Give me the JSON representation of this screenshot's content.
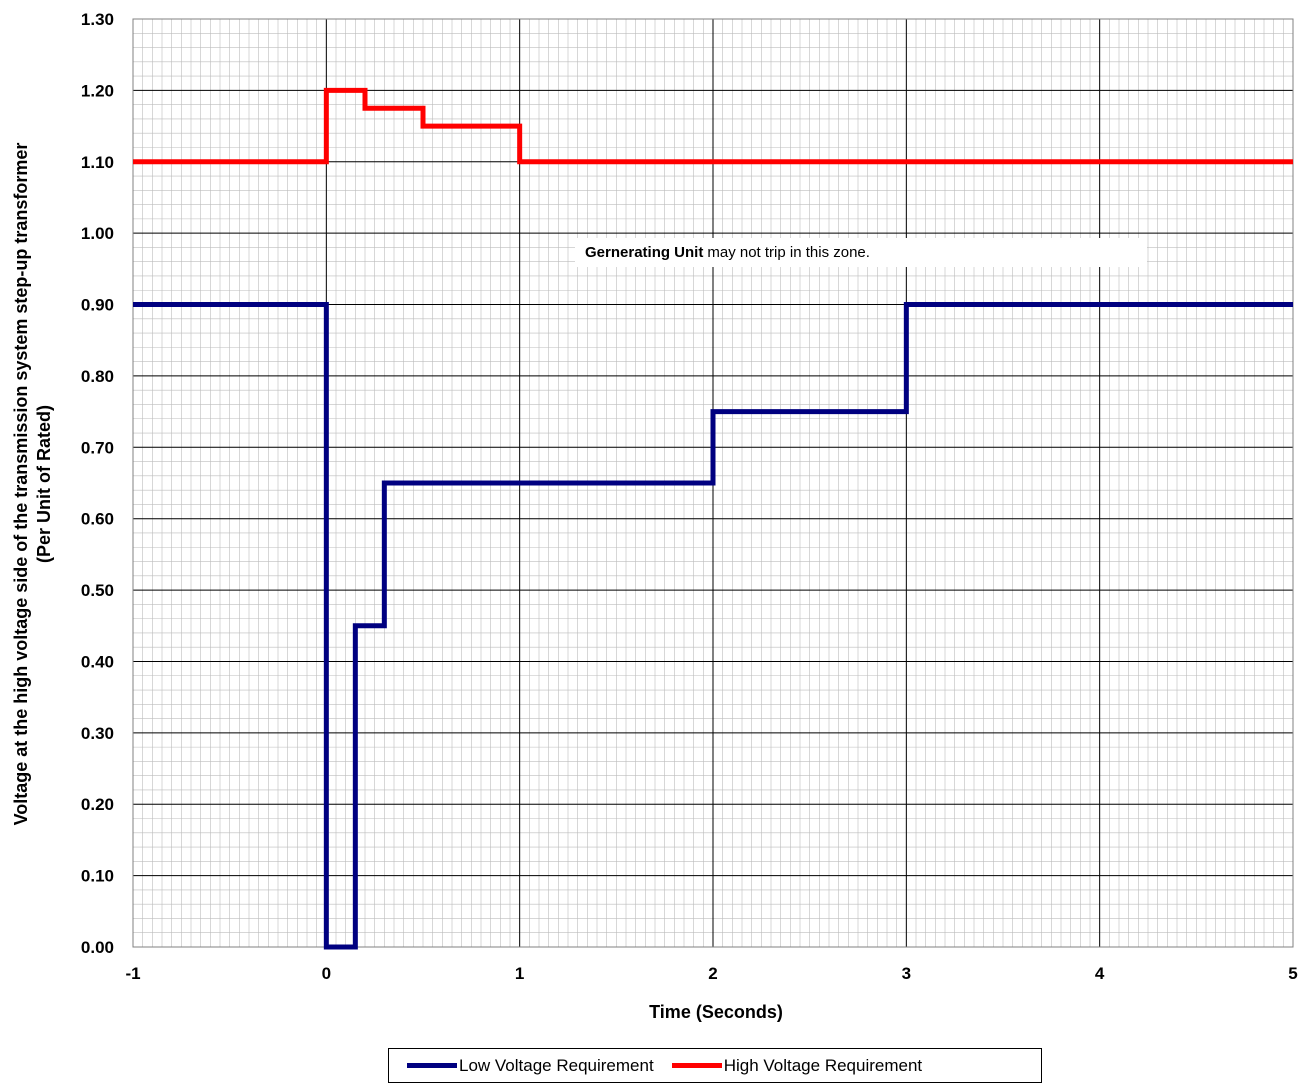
{
  "chart_data": {
    "type": "line",
    "title": "",
    "xlabel": "Time (Seconds)",
    "ylabel_line1": "Voltage at the high voltage side of the transmission system step-up transformer",
    "ylabel_line2": "(Per Unit of Rated)",
    "xlim": [
      -1,
      5
    ],
    "ylim": [
      0,
      1.3
    ],
    "x_ticks": [
      -1,
      0,
      1,
      2,
      3,
      4,
      5
    ],
    "x_tick_labels": [
      "-1",
      "0",
      "1",
      "2",
      "3",
      "4",
      "5"
    ],
    "y_ticks": [
      0,
      0.1,
      0.2,
      0.3,
      0.4,
      0.5,
      0.6,
      0.7,
      0.8,
      0.9,
      1.0,
      1.1,
      1.2,
      1.3
    ],
    "y_tick_labels": [
      "0.00",
      "0.10",
      "0.20",
      "0.30",
      "0.40",
      "0.50",
      "0.60",
      "0.70",
      "0.80",
      "0.90",
      "1.00",
      "1.10",
      "1.20",
      "1.30"
    ],
    "grid": true,
    "legend_position": "bottom",
    "series": [
      {
        "name": "Low Voltage Requirement",
        "color": "#000080",
        "x": [
          -1,
          0,
          0,
          0.15,
          0.15,
          0.3,
          0.3,
          2,
          2,
          3,
          3,
          5
        ],
        "y": [
          0.9,
          0.9,
          0.0,
          0.0,
          0.45,
          0.45,
          0.65,
          0.65,
          0.75,
          0.75,
          0.9,
          0.9
        ]
      },
      {
        "name": "High Voltage Requirement",
        "color": "#ff0000",
        "x": [
          -1,
          0,
          0,
          0.2,
          0.2,
          0.5,
          0.5,
          1,
          1,
          5
        ],
        "y": [
          1.1,
          1.1,
          1.2,
          1.2,
          1.175,
          1.175,
          1.15,
          1.15,
          1.1,
          1.1
        ]
      }
    ],
    "annotation": {
      "bold": "Gernerating Unit",
      "text": "may not trip in this zone."
    }
  }
}
